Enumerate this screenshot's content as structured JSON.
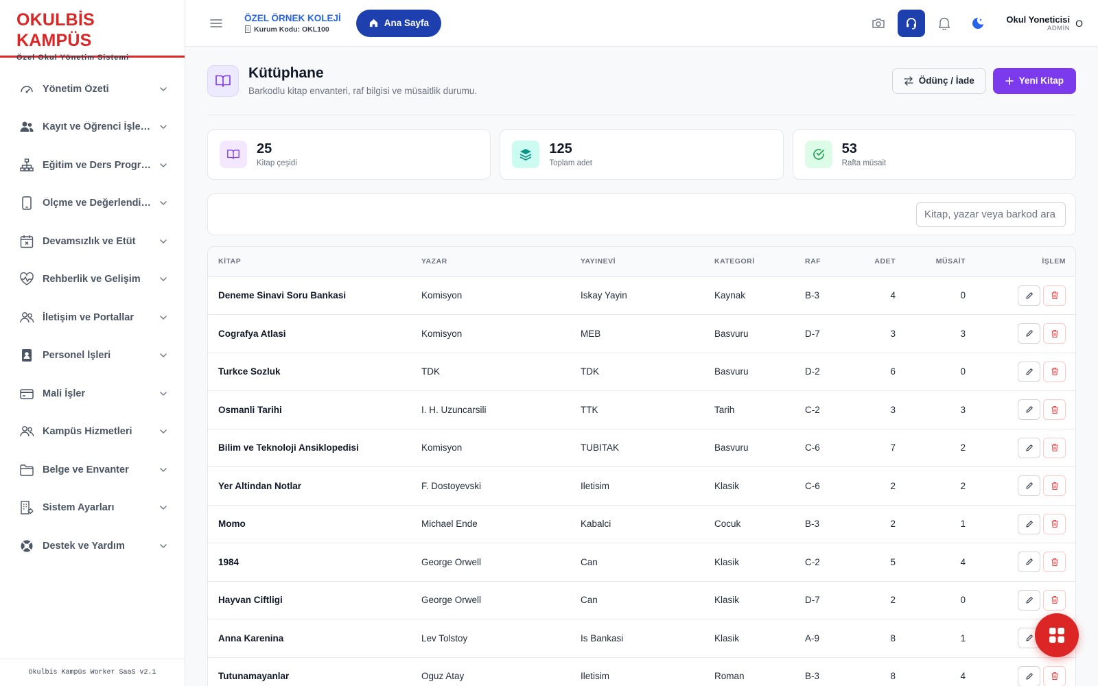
{
  "brand": {
    "title": "OKULBİS KAMPÜS",
    "subtitle": "Özel Okul Yönetim Sistemi"
  },
  "sidebar": {
    "items": [
      {
        "label": "Yönetim Özeti",
        "icon": "gauge-icon"
      },
      {
        "label": "Kayıt ve Öğrenci İşlemleri",
        "icon": "users-icon"
      },
      {
        "label": "Eğitim ve Ders Programı",
        "icon": "hierarchy-icon"
      },
      {
        "label": "Ölçme ve Değerlendirme",
        "icon": "tablet-icon"
      },
      {
        "label": "Devamsızlık ve Etüt",
        "icon": "calendar-x-icon"
      },
      {
        "label": "Rehberlik ve Gelişim",
        "icon": "heart-pulse-icon"
      },
      {
        "label": "İletişim ve Portallar",
        "icon": "user-group-icon"
      },
      {
        "label": "Personel İşleri",
        "icon": "badge-icon"
      },
      {
        "label": "Mali İşler",
        "icon": "credit-card-icon"
      },
      {
        "label": "Kampüs Hizmetleri",
        "icon": "people-icon"
      },
      {
        "label": "Belge ve Envanter",
        "icon": "folder-icon"
      },
      {
        "label": "Sistem Ayarları",
        "icon": "building-gear-icon"
      },
      {
        "label": "Destek ve Yardım",
        "icon": "lifebuoy-icon"
      }
    ],
    "footer": "Okulbis Kampüs Worker SaaS v2.1"
  },
  "header": {
    "school_name": "ÖZEL ÖRNEK KOLEJİ",
    "school_code": "Kurum Kodu: OKL100",
    "home_label": "Ana Sayfa",
    "user_name": "Okul Yoneticisi",
    "user_role": "ADMİN",
    "user_initial": "O"
  },
  "page": {
    "title": "Kütüphane",
    "subtitle": "Barkodlu kitap envanteri, raf bilgisi ve müsaitlik durumu.",
    "loan_button": "Ödünç / İade",
    "new_button": "Yeni Kitap"
  },
  "stats": [
    {
      "value": "25",
      "label": "Kitap çeşidi"
    },
    {
      "value": "125",
      "label": "Toplam adet"
    },
    {
      "value": "53",
      "label": "Rafta müsait"
    }
  ],
  "search": {
    "placeholder": "Kitap, yazar veya barkod ara"
  },
  "table": {
    "headers": [
      "KİTAP",
      "YAZAR",
      "YAYINEVİ",
      "KATEGORİ",
      "RAF",
      "ADET",
      "MÜSAİT",
      "İŞLEM"
    ],
    "rows": [
      [
        "Deneme Sinavi Soru Bankasi",
        "Komisyon",
        "Iskay Yayin",
        "Kaynak",
        "B-3",
        "4",
        "0"
      ],
      [
        "Cografya Atlasi",
        "Komisyon",
        "MEB",
        "Basvuru",
        "D-7",
        "3",
        "3"
      ],
      [
        "Turkce Sozluk",
        "TDK",
        "TDK",
        "Basvuru",
        "D-2",
        "6",
        "0"
      ],
      [
        "Osmanli Tarihi",
        "I. H. Uzuncarsili",
        "TTK",
        "Tarih",
        "C-2",
        "3",
        "3"
      ],
      [
        "Bilim ve Teknoloji Ansiklopedisi",
        "Komisyon",
        "TUBITAK",
        "Basvuru",
        "C-6",
        "7",
        "2"
      ],
      [
        "Yer Altindan Notlar",
        "F. Dostoyevski",
        "Iletisim",
        "Klasik",
        "C-6",
        "2",
        "2"
      ],
      [
        "Momo",
        "Michael Ende",
        "Kabalci",
        "Cocuk",
        "B-3",
        "2",
        "1"
      ],
      [
        "1984",
        "George Orwell",
        "Can",
        "Klasik",
        "C-2",
        "5",
        "4"
      ],
      [
        "Hayvan Ciftligi",
        "George Orwell",
        "Can",
        "Klasik",
        "D-7",
        "2",
        "0"
      ],
      [
        "Anna Karenina",
        "Lev Tolstoy",
        "Is Bankasi",
        "Klasik",
        "A-9",
        "8",
        "1"
      ],
      [
        "Tutunamayanlar",
        "Oguz Atay",
        "Iletisim",
        "Roman",
        "B-3",
        "8",
        "4"
      ]
    ]
  },
  "colors": {
    "brand": "#dc2626",
    "primary": "#7c3aed",
    "home": "#1e40af",
    "link": "#2563eb"
  }
}
